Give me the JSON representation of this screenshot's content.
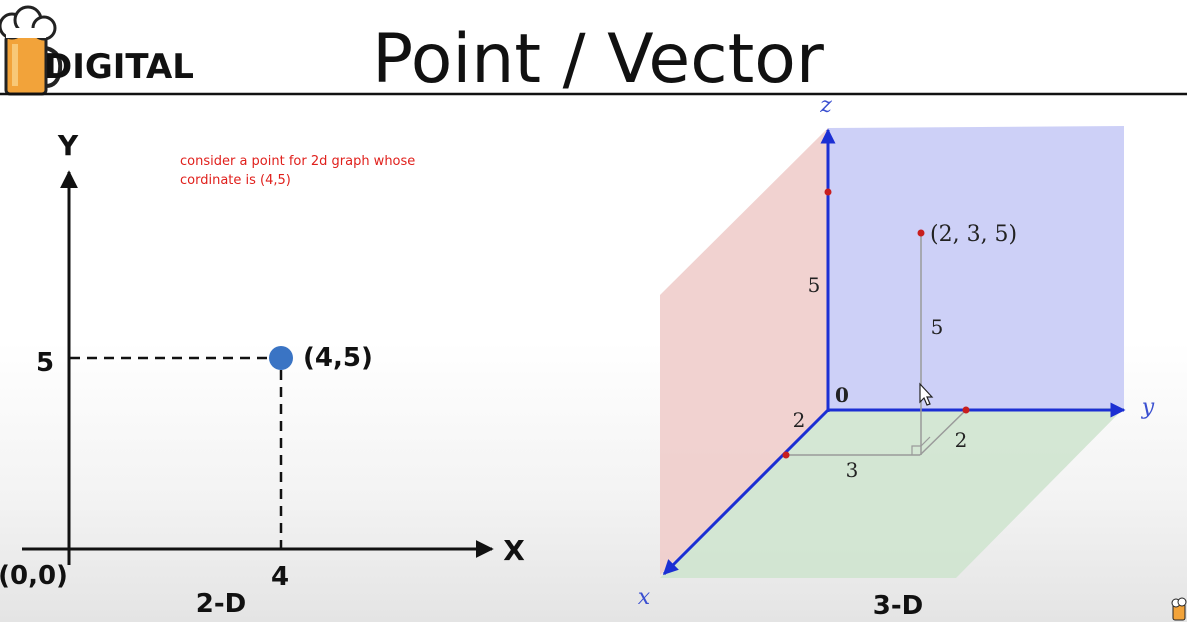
{
  "header": {
    "brand": "DIGITAL",
    "title": "Point / Vector"
  },
  "graph2d": {
    "note_lines": [
      "consider a point for 2d graph whose",
      "cordinate is (4,5)"
    ],
    "y_axis_label": "Y",
    "x_axis_label": "X",
    "origin_label": "(0,0)",
    "y_tick": "5",
    "x_tick": "4",
    "point_label": "(4,5)",
    "caption": "2-D",
    "point_color": "#3a74c4"
  },
  "graph3d": {
    "z_axis_label": "z",
    "y_axis_label": "y",
    "x_axis_label": "x",
    "origin_label": "0",
    "point_label": "(2, 3, 5)",
    "z_tick": "5",
    "height_label": "5",
    "x_tick": "2",
    "y_length_label": "3",
    "depth_label": "2",
    "caption": "3-D",
    "colors": {
      "yz_plane": "#c8cbf6",
      "xz_plane": "#f0cdcb",
      "xy_plane": "#cfe4cf",
      "axis": "#1c2fd3",
      "point": "#c81e1e"
    }
  }
}
